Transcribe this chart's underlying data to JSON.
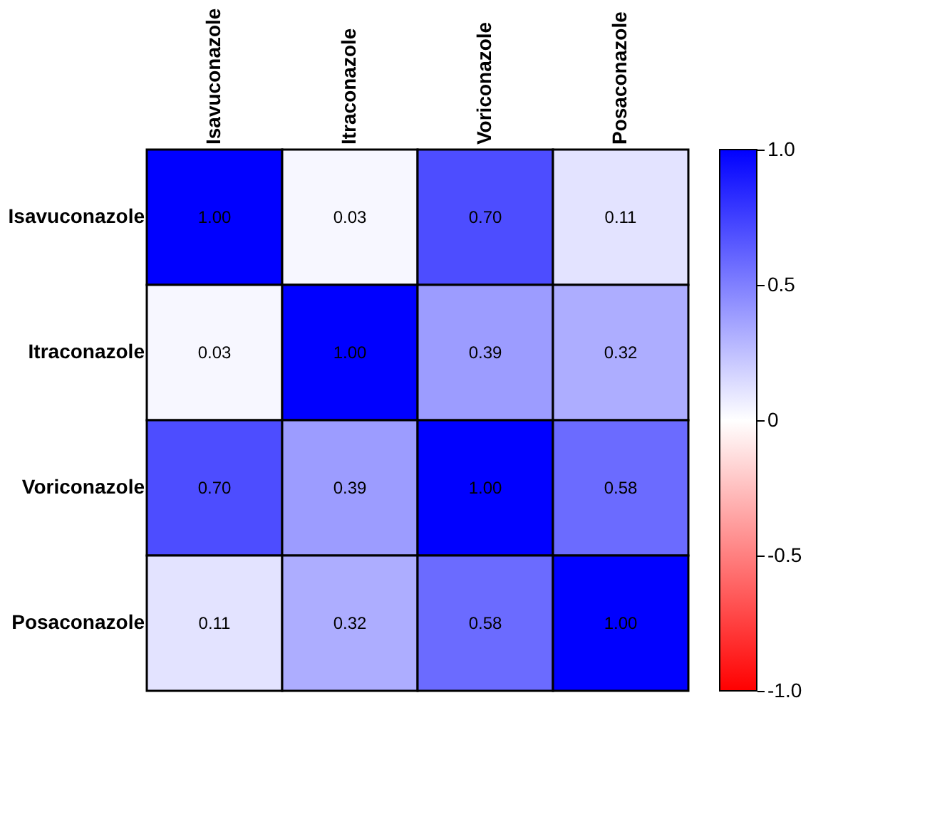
{
  "chart_data": {
    "type": "heatmap",
    "categories": [
      "Isavuconazole",
      "Itraconazole",
      "Voriconazole",
      "Posaconazole"
    ],
    "y_categories": [
      "Isavuconazole",
      "Itraconazole",
      "Voriconazole",
      "Posaconazole"
    ],
    "cells": [
      [
        1.0,
        0.03,
        0.7,
        0.11
      ],
      [
        0.03,
        1.0,
        0.39,
        0.32
      ],
      [
        0.7,
        0.39,
        1.0,
        0.58
      ],
      [
        0.11,
        0.32,
        0.58,
        1.0
      ]
    ],
    "cell_labels": [
      [
        "1.00",
        "0.03",
        "0.70",
        "0.11"
      ],
      [
        "0.03",
        "1.00",
        "0.39",
        "0.32"
      ],
      [
        "0.70",
        "0.39",
        "1.00",
        "0.58"
      ],
      [
        "0.11",
        "0.32",
        "0.58",
        "1.00"
      ]
    ],
    "clim": [
      -1.0,
      1.0
    ],
    "cticks": [
      {
        "value": 1.0,
        "label": "1.0"
      },
      {
        "value": 0.5,
        "label": "0.5"
      },
      0,
      {
        "value": -0.5,
        "label": "-0.5"
      },
      {
        "value": -1.0,
        "label": "-1.0"
      }
    ]
  }
}
